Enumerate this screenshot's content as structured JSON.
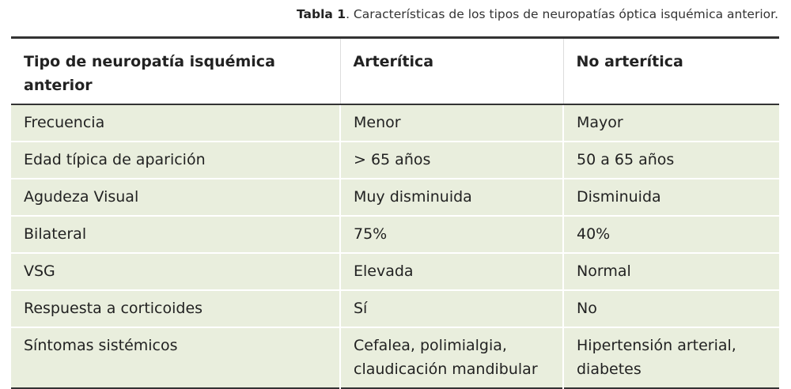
{
  "caption": {
    "label": "Tabla 1",
    "text": ". Características de los tipos de neuropatías óptica isquémica anterior."
  },
  "table": {
    "headers": [
      "Tipo de neuropatía isquémica anterior",
      "Arterítica",
      "No arterítica"
    ],
    "rows": [
      [
        "Frecuencia",
        "Menor",
        "Mayor"
      ],
      [
        "Edad típica de aparición",
        "> 65 años",
        "50 a 65 años"
      ],
      [
        "Agudeza Visual",
        "Muy disminuida",
        "Disminuida"
      ],
      [
        "Bilateral",
        "75%",
        "40%"
      ],
      [
        "VSG",
        "Elevada",
        "Normal"
      ],
      [
        "Respuesta a corticoides",
        "Sí",
        "No"
      ],
      [
        "Síntomas sistémicos",
        "Cefalea, polimialgia, claudicación mandibular",
        "Hipertensión arterial, diabetes"
      ]
    ]
  }
}
